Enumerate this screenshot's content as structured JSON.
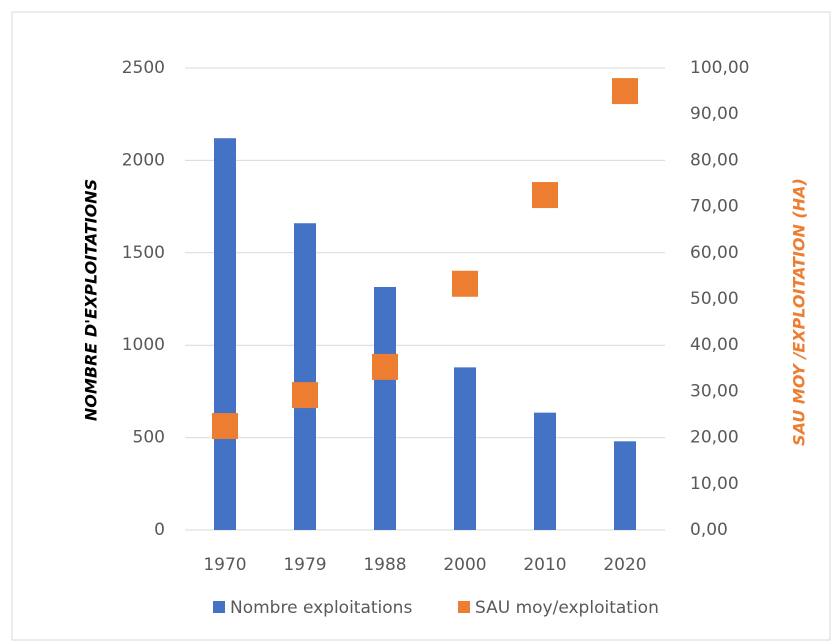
{
  "chart_data": {
    "type": "bar",
    "categories": [
      "1970",
      "1979",
      "1988",
      "2000",
      "2010",
      "2020"
    ],
    "series": [
      {
        "name": "Nombre exploitations",
        "type": "bar",
        "color": "#4472c4",
        "values": [
          2120,
          1660,
          1315,
          880,
          635,
          480
        ]
      },
      {
        "name": "SAU moy/exploitation",
        "type": "scatter",
        "axis": "y2",
        "color": "#ed7d31",
        "values": [
          22.5,
          29.2,
          35.3,
          53.3,
          72.5,
          95.0
        ]
      }
    ],
    "y_label": "NOMBRE D'EXPLOITATIONS",
    "y2_label": "SAU MOY /EXPLOITATION (HA)",
    "ylim": [
      0,
      2500
    ],
    "yticks": [
      0,
      500,
      1000,
      1500,
      2000,
      2500
    ],
    "y2lim": [
      0,
      100
    ],
    "y2ticks": [
      {
        "value": 0,
        "label": "0,00"
      },
      {
        "value": 10,
        "label": "10,00"
      },
      {
        "value": 20,
        "label": "20,00"
      },
      {
        "value": 30,
        "label": "30,00"
      },
      {
        "value": 40,
        "label": "40,00"
      },
      {
        "value": 50,
        "label": "50,00"
      },
      {
        "value": 60,
        "label": "60,00"
      },
      {
        "value": 70,
        "label": "70,00"
      },
      {
        "value": 80,
        "label": "80,00"
      },
      {
        "value": 90,
        "label": "90,00"
      },
      {
        "value": 100,
        "label": "100,00"
      }
    ],
    "grid": true,
    "legend": "bottom"
  }
}
